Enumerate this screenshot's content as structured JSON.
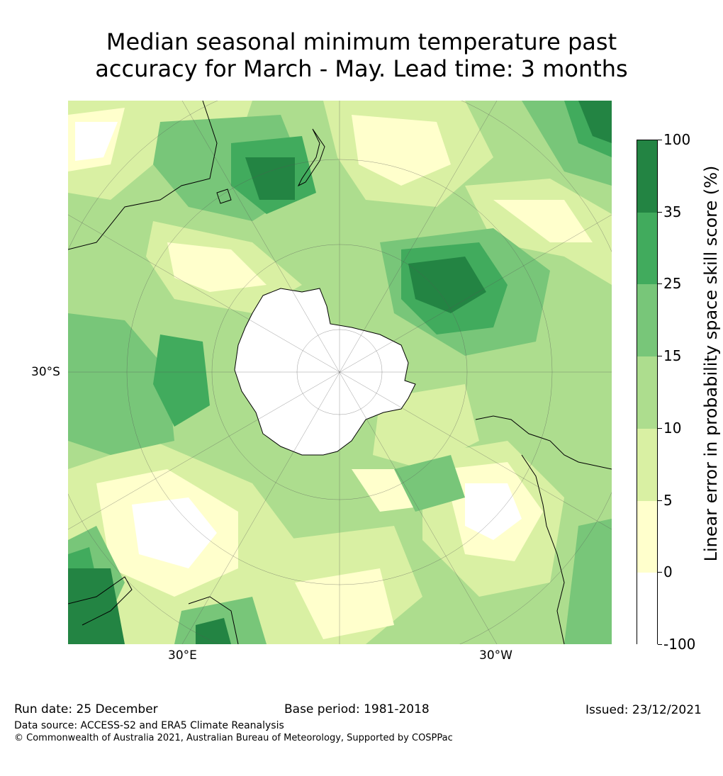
{
  "title_line1": "Median seasonal minimum temperature past",
  "title_line2": "accuracy for March - May. Lead time: 3 months",
  "map": {
    "lat_label": "30°S",
    "lon_label_left": "30°E",
    "lon_label_right": "30°W",
    "colors": {
      "neg": "#ffffff",
      "c0_5": "#ffffcc",
      "c5_10": "#d9f0a3",
      "c10_15": "#addd8e",
      "c15_25": "#78c679",
      "c25_35": "#41ab5d",
      "c35_100": "#238443",
      "coast": "#000000",
      "grid": "#555555"
    }
  },
  "colorbar": {
    "title": "Linear error in probability space skill score (%)",
    "levels": [
      {
        "label": "100",
        "color": "#238443"
      },
      {
        "label": "35",
        "color": "#41ab5d"
      },
      {
        "label": "25",
        "color": "#78c679"
      },
      {
        "label": "15",
        "color": "#addd8e"
      },
      {
        "label": "10",
        "color": "#d9f0a3"
      },
      {
        "label": "5",
        "color": "#ffffcc"
      },
      {
        "label": "0",
        "color": "#ffffff"
      },
      {
        "label": "-100",
        "color": null
      }
    ]
  },
  "footer": {
    "run_date": "Run date: 25 December",
    "base_period": "Base period: 1981-2018",
    "issued": "Issued: 23/12/2021",
    "data_source": "Data source: ACCESS-S2 and ERA5 Climate Reanalysis",
    "copyright": "© Commonwealth of Australia 2021, Australian Bureau of Meteorology, Supported by COSPPac"
  }
}
